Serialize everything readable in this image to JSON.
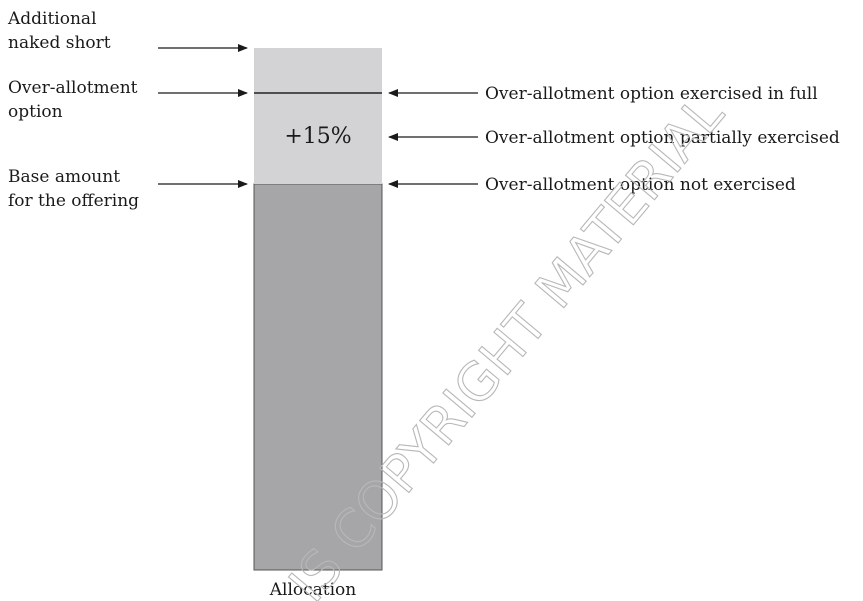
{
  "left_labels": {
    "naked_short": [
      "Additional",
      "naked short"
    ],
    "over_allotment": [
      "Over-allotment",
      "option"
    ],
    "base_amount": [
      "Base amount",
      "for the offering"
    ]
  },
  "right_labels": {
    "exercised_full": "Over-allotment option exercised in full",
    "partially_exercised": "Over-allotment option partially exercised",
    "not_exercised": "Over-allotment option not exercised"
  },
  "bar": {
    "percent_label": "+15%",
    "axis_label": "Allocation",
    "colors": {
      "base": "#a6a6a9",
      "over_allotment": "#d3d3d5",
      "border": "#555555"
    }
  },
  "watermark": "IS COPYRIGHT MATERIAL"
}
